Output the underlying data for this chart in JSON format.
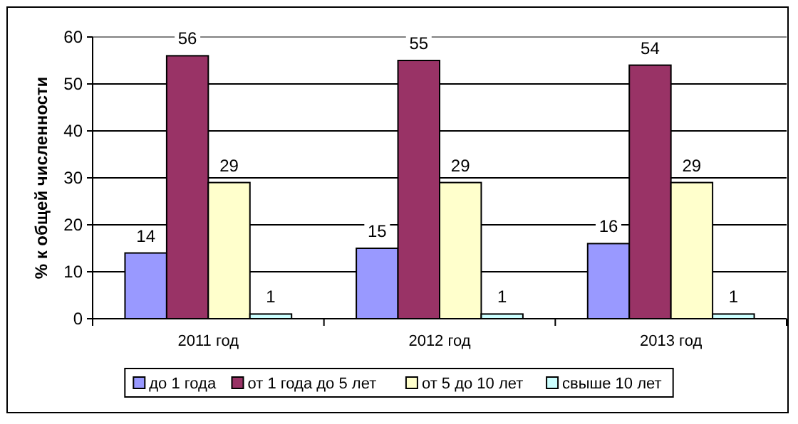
{
  "chart_data": {
    "type": "bar",
    "ylabel": "%  к общей численности",
    "categories": [
      "2011 год",
      "2012 год",
      "2013 год"
    ],
    "series": [
      {
        "name": "до 1 года",
        "color": "#9999ff",
        "values": [
          14,
          15,
          16
        ]
      },
      {
        "name": "от 1 года до 5 лет",
        "color": "#993366",
        "values": [
          56,
          55,
          54
        ]
      },
      {
        "name": "от 5 до 10 лет",
        "color": "#ffffcc",
        "values": [
          29,
          29,
          29
        ]
      },
      {
        "name": "свыше 10 лет",
        "color": "#ccffff",
        "values": [
          1,
          1,
          1
        ]
      }
    ],
    "ylim": [
      0,
      60
    ],
    "yticks": [
      0,
      10,
      20,
      30,
      40,
      50,
      60
    ],
    "grid": "y",
    "legend": "bottom",
    "data_labels": true
  }
}
